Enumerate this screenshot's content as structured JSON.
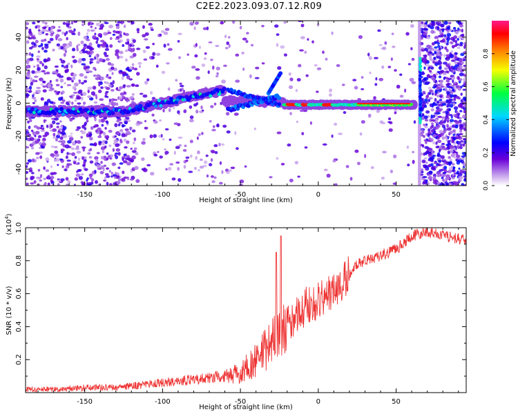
{
  "title": "C2E2.2023.093.07.12.R09",
  "chart_data": [
    {
      "type": "heatmap",
      "xlabel": "Height of straight line (km)",
      "ylabel": "Frequency (Hz)",
      "xlim": [
        -188,
        95
      ],
      "ylim": [
        -50,
        50
      ],
      "x_ticks": [
        -150,
        -100,
        -50,
        0,
        50
      ],
      "y_ticks": [
        -40,
        -20,
        0,
        20,
        40
      ],
      "colorbar": {
        "label": "Normalized spectral amplitude",
        "range": [
          0,
          1
        ],
        "ticks": [
          0.0,
          0.2,
          0.4,
          0.6,
          0.8
        ],
        "colors": [
          "#ffffff",
          "#b985e0",
          "#5a00d2",
          "#0000ff",
          "#00e5ff",
          "#00ff40",
          "#f5ff00",
          "#ff8000",
          "#ff0000",
          "#ff1a8c"
        ]
      },
      "main_trace": [
        {
          "x": -185,
          "y": -5,
          "amp": 0.3
        },
        {
          "x": -150,
          "y": -5,
          "amp": 0.35
        },
        {
          "x": -120,
          "y": -4,
          "amp": 0.3
        },
        {
          "x": -100,
          "y": -1,
          "amp": 0.35
        },
        {
          "x": -80,
          "y": 2,
          "amp": 0.4
        },
        {
          "x": -60,
          "y": 8,
          "amp": 0.45
        },
        {
          "x": -55,
          "y": -4,
          "amp": 0.4
        },
        {
          "x": -40,
          "y": 2,
          "amp": 0.4
        },
        {
          "x": -30,
          "y": 2,
          "amp": 0.45
        },
        {
          "x": -25,
          "y": 18,
          "amp": 0.45
        },
        {
          "x": -20,
          "y": 0,
          "amp": 0.9
        },
        {
          "x": 0,
          "y": -1,
          "amp": 0.7
        },
        {
          "x": 20,
          "y": -1,
          "amp": 0.9
        },
        {
          "x": 60,
          "y": -1,
          "amp": 0.9
        },
        {
          "x": 65,
          "y": 28,
          "amp": 0.35
        },
        {
          "x": 65,
          "y": -12,
          "amp": 0.35
        }
      ]
    },
    {
      "type": "line",
      "xlabel": "Height of straight line (km)",
      "ylabel": "SNR (10 * v/v)",
      "ylabel_scale": "(x10^4)",
      "xlim": [
        -188,
        95
      ],
      "ylim": [
        0,
        1.0
      ],
      "x_ticks": [
        -150,
        -100,
        -50,
        0,
        50
      ],
      "y_ticks": [
        0.2,
        0.4,
        0.6,
        0.8,
        1.0
      ],
      "color": "#ee3333",
      "x": [
        -188,
        -170,
        -150,
        -130,
        -110,
        -100,
        -90,
        -80,
        -70,
        -60,
        -50,
        -45,
        -40,
        -35,
        -30,
        -25,
        -20,
        -15,
        -10,
        -5,
        0,
        5,
        10,
        15,
        20,
        25,
        30,
        40,
        50,
        60,
        70,
        80,
        95
      ],
      "y": [
        0.02,
        0.02,
        0.03,
        0.03,
        0.05,
        0.06,
        0.07,
        0.08,
        0.09,
        0.1,
        0.12,
        0.15,
        0.2,
        0.25,
        0.3,
        0.35,
        0.4,
        0.45,
        0.5,
        0.55,
        0.55,
        0.6,
        0.62,
        0.65,
        0.72,
        0.78,
        0.8,
        0.83,
        0.87,
        0.95,
        0.98,
        0.95,
        0.93
      ],
      "spike": {
        "x": -24,
        "y": 0.95
      }
    }
  ]
}
